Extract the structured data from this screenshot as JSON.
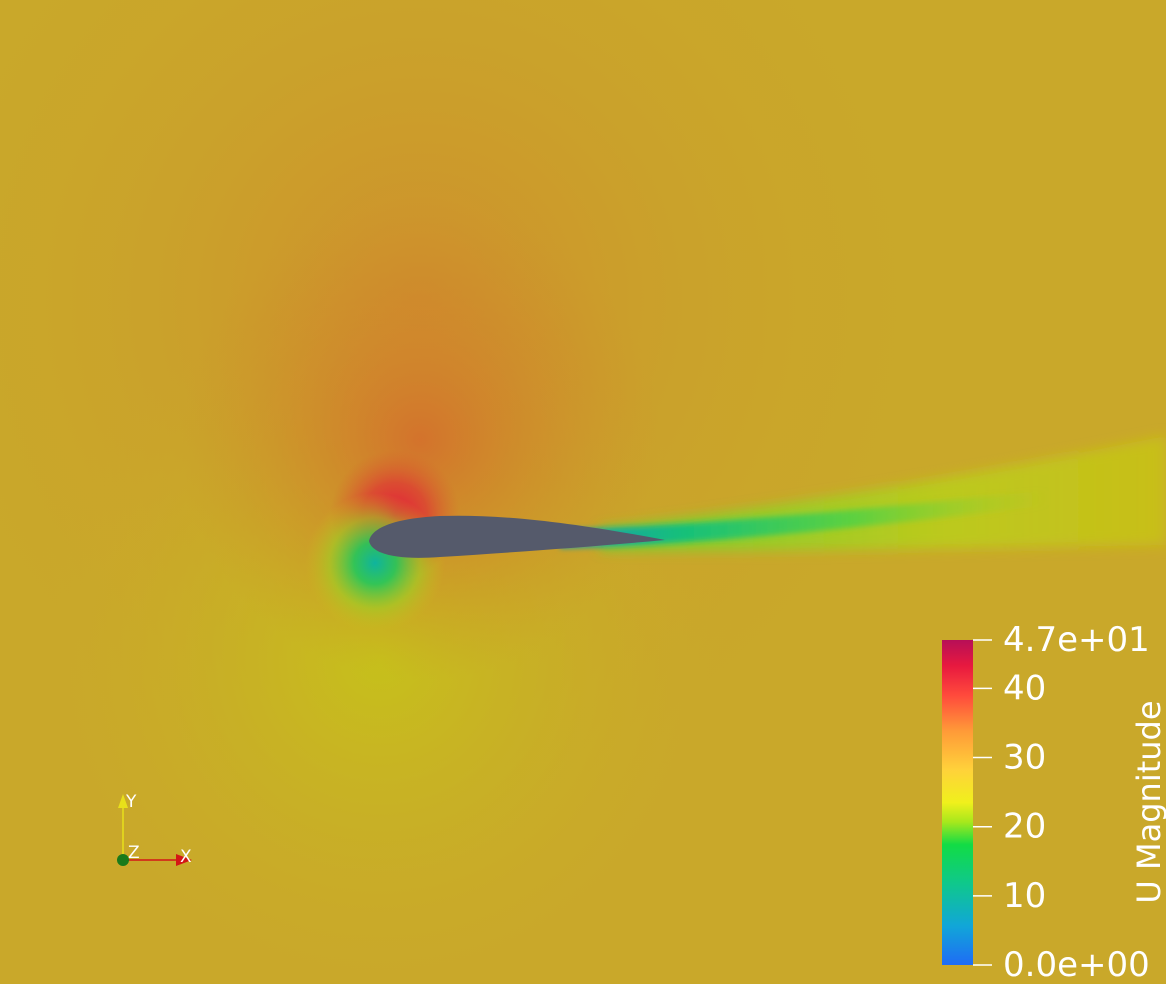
{
  "scalar_bar": {
    "title": "U Magnitude",
    "range": [
      0,
      47
    ],
    "ticks": [
      {
        "value": 47,
        "label": "4.7e+01"
      },
      {
        "value": 40,
        "label": "40"
      },
      {
        "value": 30,
        "label": "30"
      },
      {
        "value": 20,
        "label": "20"
      },
      {
        "value": 10,
        "label": "10"
      },
      {
        "value": 0,
        "label": "0.0e+00"
      }
    ],
    "colormap": [
      {
        "t": 0.0,
        "color": "#1f6cf5"
      },
      {
        "t": 0.12,
        "color": "#11a6d8"
      },
      {
        "t": 0.25,
        "color": "#0fc88c"
      },
      {
        "t": 0.37,
        "color": "#12dc45"
      },
      {
        "t": 0.44,
        "color": "#a7e81c"
      },
      {
        "t": 0.5,
        "color": "#f0f01c"
      },
      {
        "t": 0.6,
        "color": "#ffd23a"
      },
      {
        "t": 0.72,
        "color": "#ff9a38"
      },
      {
        "t": 0.83,
        "color": "#ff4a3c"
      },
      {
        "t": 0.92,
        "color": "#e8193f"
      },
      {
        "t": 1.0,
        "color": "#b70f57"
      }
    ]
  },
  "orientation_axes": {
    "x_label": "X",
    "y_label": "Y",
    "z_label": "Z",
    "x_color": "#d41616",
    "y_color": "#e8e01a",
    "z_color": "#1a7a1a"
  },
  "scene": {
    "background_color": "#c9a82a",
    "airfoil_color": "#555a6b"
  }
}
